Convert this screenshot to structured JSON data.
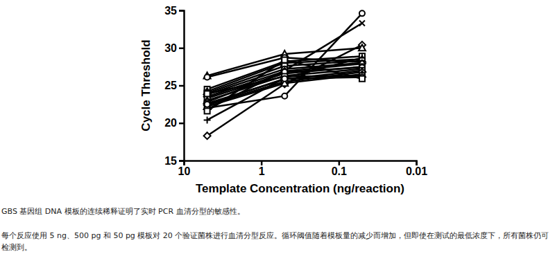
{
  "chart_data": {
    "type": "line",
    "x_label": "Template Concentration (ng/reaction)",
    "y_label": "Cycle Threshold",
    "annotations": [
      "GBS 基因组 DNA 模板的连续稀释证明了实时 PCR 血清分型的敏感性。",
      "每个反应使用 5 ng、500 pg 和 50 pg 模板对 20 个验证菌株进行血清分型反应。循环阈值随着模板量的减少而增加，但即使在测试的最低浓度下，所有菌株仍可检测到。"
    ],
    "log": "x",
    "x": [
      5,
      0.5,
      0.05
    ],
    "xlim": [
      10,
      0.01
    ],
    "xticks": [
      10,
      1,
      0.1,
      0.01
    ],
    "ylim": [
      15,
      35
    ],
    "yticks": [
      15,
      20,
      25,
      30,
      35
    ],
    "grid": false,
    "color": "#000000",
    "series": [
      {
        "marker": "circle",
        "values": [
          22.0,
          23.6,
          34.6
        ]
      },
      {
        "marker": "cross",
        "values": [
          21.8,
          27.0,
          33.3
        ]
      },
      {
        "marker": "diamond",
        "values": [
          18.3,
          25.2,
          30.4
        ]
      },
      {
        "marker": "triangle",
        "values": [
          26.3,
          29.2,
          30.0
        ]
      },
      {
        "marker": "circle",
        "values": [
          26.1,
          28.7,
          28.1
        ]
      },
      {
        "marker": "square",
        "values": [
          24.5,
          28.2,
          28.9
        ]
      },
      {
        "marker": "plus",
        "values": [
          20.4,
          26.0,
          28.7
        ]
      },
      {
        "marker": "triangle",
        "values": [
          24.2,
          28.0,
          28.5
        ]
      },
      {
        "marker": "square",
        "values": [
          24.0,
          27.6,
          28.3
        ]
      },
      {
        "marker": "circle",
        "values": [
          23.8,
          27.2,
          28.0
        ]
      },
      {
        "marker": "diamond",
        "values": [
          23.5,
          26.9,
          27.9
        ]
      },
      {
        "marker": "square",
        "values": [
          23.3,
          26.6,
          27.5
        ]
      },
      {
        "marker": "triangle",
        "values": [
          23.0,
          26.3,
          27.2
        ]
      },
      {
        "marker": "circle",
        "values": [
          22.8,
          26.8,
          27.4
        ]
      },
      {
        "marker": "square",
        "values": [
          22.6,
          25.8,
          27.0
        ]
      },
      {
        "marker": "diamond",
        "values": [
          22.4,
          25.5,
          26.8
        ]
      },
      {
        "marker": "triangle",
        "values": [
          22.2,
          25.3,
          26.5
        ]
      },
      {
        "marker": "square",
        "values": [
          23.9,
          26.2,
          26.3
        ]
      },
      {
        "marker": "circle",
        "values": [
          22.5,
          25.9,
          26.1
        ]
      },
      {
        "marker": "square",
        "values": [
          21.6,
          28.4,
          25.9
        ]
      }
    ]
  }
}
